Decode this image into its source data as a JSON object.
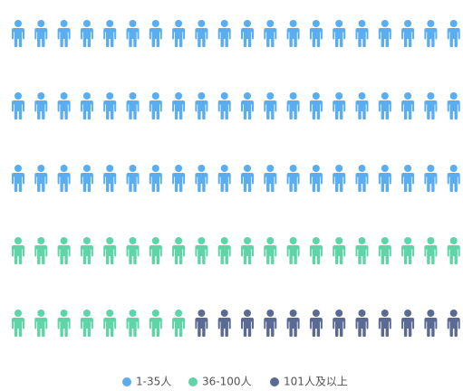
{
  "chart_data": {
    "type": "pictorial",
    "series": [
      {
        "name": "1-35人",
        "color": "#5aaef0",
        "values": [
          60
        ]
      },
      {
        "name": "36-100人",
        "color": "#5fd4a6",
        "values": [
          28
        ]
      },
      {
        "name": "101人及以上",
        "color": "#5a6a93",
        "values": [
          12
        ]
      }
    ],
    "legend": "bottom"
  }
}
